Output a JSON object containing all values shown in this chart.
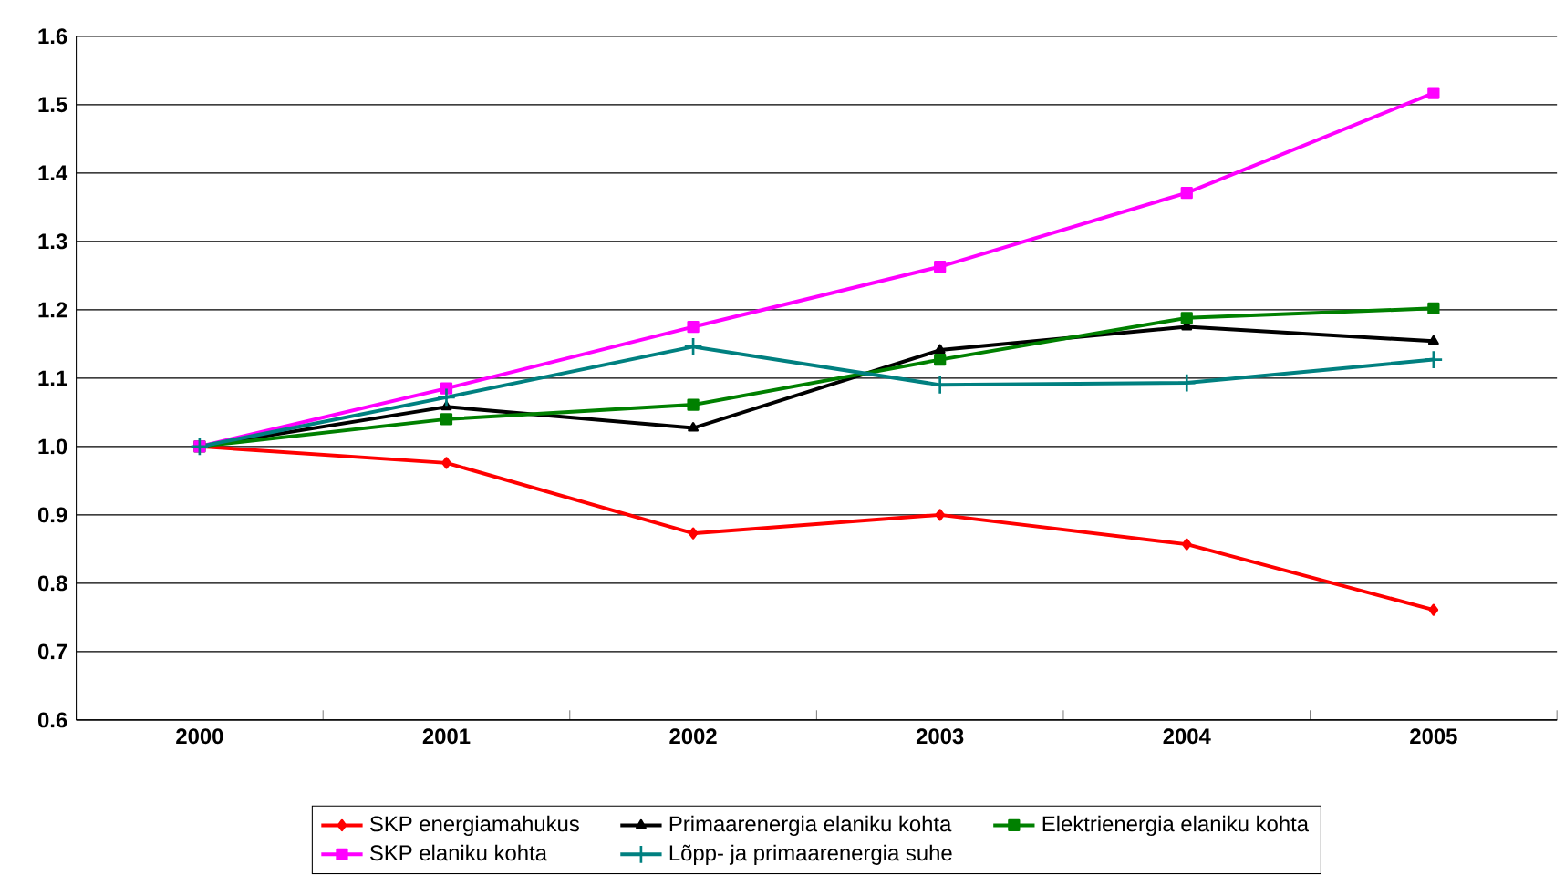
{
  "chart_data": {
    "type": "line",
    "categories": [
      "2000",
      "2001",
      "2002",
      "2003",
      "2004",
      "2005"
    ],
    "series": [
      {
        "name": "SKP energiamahukus",
        "color": "#ff0000",
        "marker": "diamond",
        "values": [
          1.0,
          0.976,
          0.873,
          0.9,
          0.857,
          0.761
        ]
      },
      {
        "name": "Primaarenergia elaniku kohta",
        "color": "#000000",
        "marker": "triangle",
        "values": [
          1.0,
          1.058,
          1.027,
          1.141,
          1.175,
          1.154
        ]
      },
      {
        "name": "Elektrienergia elaniku kohta",
        "color": "#008000",
        "marker": "square",
        "values": [
          1.0,
          1.04,
          1.061,
          1.127,
          1.188,
          1.202
        ]
      },
      {
        "name": "SKP elaniku kohta",
        "color": "#ff00ff",
        "marker": "square",
        "values": [
          1.0,
          1.085,
          1.175,
          1.263,
          1.371,
          1.517
        ]
      },
      {
        "name": "Lõpp- ja primaarenergia suhe",
        "color": "#008080",
        "marker": "cross",
        "values": [
          1.0,
          1.072,
          1.146,
          1.09,
          1.093,
          1.127
        ]
      }
    ],
    "ylim": [
      0.6,
      1.6
    ],
    "yticks": [
      {
        "value": 0.6,
        "label": "0.6"
      },
      {
        "value": 0.7,
        "label": "0.7"
      },
      {
        "value": 0.8,
        "label": "0.8"
      },
      {
        "value": 0.9,
        "label": "0.9"
      },
      {
        "value": 1.0,
        "label": "1.0"
      },
      {
        "value": 1.1,
        "label": "1.1"
      },
      {
        "value": 1.2,
        "label": "1.2"
      },
      {
        "value": 1.3,
        "label": "1.3"
      },
      {
        "value": 1.4,
        "label": "1.4"
      },
      {
        "value": 1.5,
        "label": "1.5"
      },
      {
        "value": 1.6,
        "label": "1.6"
      }
    ],
    "grid": "y",
    "legend": "bottom"
  }
}
